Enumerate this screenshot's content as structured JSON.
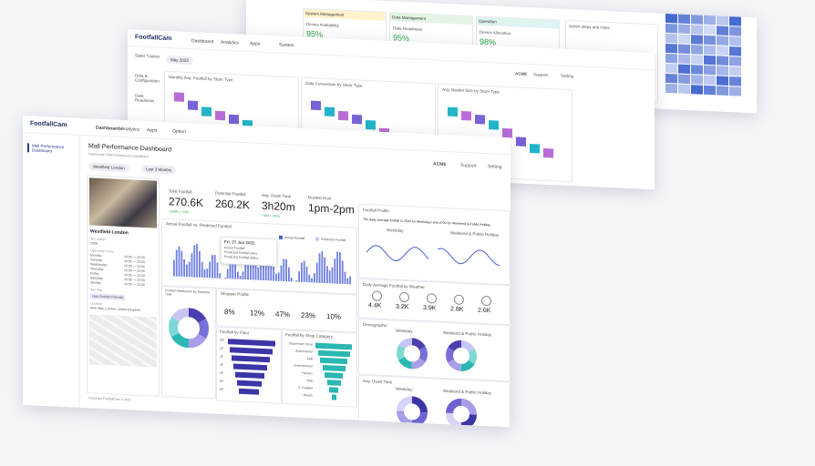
{
  "back_top": {
    "cards": [
      {
        "title": "System Management",
        "label": "Device Availability",
        "value": "95%"
      },
      {
        "title": "Data Management",
        "label": "Data Readiness",
        "value": "95%"
      },
      {
        "title": "Operation",
        "label": "Device Allocation",
        "value": "98%"
      }
    ],
    "hints": "Action steps and Hints"
  },
  "back_middle": {
    "logo": "FootfallCam",
    "nav": [
      "Dashboard",
      "Analytics",
      "Apps",
      "System"
    ],
    "account": "ACME",
    "support": "Support",
    "setting": "Setting",
    "sidebar": [
      "Sales Tracker",
      "Data & Configuration",
      "Data Readiness"
    ],
    "filter": "May 2022",
    "charts": [
      "Monthly Avg. Footfall by Store Type",
      "Data Conversion by Store Type",
      "Avg. Basket Size by Store Type"
    ]
  },
  "front": {
    "logo": "FootfallCam",
    "nav": [
      "Dashboards",
      "Analytics",
      "Apps",
      "Option"
    ],
    "sidebar_item": "Mall Performance Dashboard",
    "title": "Mall Performance Dashboard",
    "breadcrumb": "Dashboard / Mall Performance Dashboard",
    "filters": [
      "Westfield London",
      "Last 3 Months"
    ],
    "account": "ACME",
    "support": "Support",
    "setting": "Setting",
    "store": {
      "name": "Westfield London",
      "since_label": "Site Usage",
      "since": "2008",
      "hours_label": "Operating Hours",
      "days": [
        "Monday",
        "Tuesday",
        "Wednesday",
        "Thursday",
        "Friday",
        "Saturday",
        "Sunday"
      ],
      "hours": "10:00 — 22:00",
      "tag_label": "Site Tag",
      "tag": "High Footfall Potential",
      "location_label": "Location",
      "location": "Ariel Way, London, United Kingdom"
    },
    "kpis": [
      {
        "label": "Total Footfall",
        "value": "270.6K",
        "change": "+638K | +13%"
      },
      {
        "label": "Potential Footfall",
        "value": "260.2K"
      },
      {
        "label": "Avg. Dwell Time",
        "value": "3h20m",
        "change": "+38K | +22%"
      },
      {
        "label": "Busiest Hour",
        "value": "1pm-2pm"
      }
    ],
    "trend": {
      "title": "Actual Footfall vs. Predicted Footfall",
      "legend": [
        "Actual Footfall",
        "Predicted Footfall"
      ],
      "tooltip_date": "Fri, 27 Jan 2022",
      "tooltip_rows": [
        "Actual Footfall",
        "Predicted Footfall (Min)",
        "Predicted Footfall (Max)"
      ]
    },
    "distance": {
      "title": "Footfall Distribution by Distance Type"
    },
    "shopper": {
      "title": "Shopper Profile",
      "percents": [
        "8%",
        "12%",
        "47%",
        "23%",
        "10%"
      ]
    },
    "floor": {
      "title": "Footfall by Floor",
      "floors": [
        "GF",
        "1F",
        "2F",
        "3F",
        "4F",
        "5F",
        "6F"
      ]
    },
    "category": {
      "title": "Footfall by Shop Category",
      "items": [
        "Department Store",
        "Supermarket",
        "F&B",
        "Entertainment",
        "Fashion",
        "Kids",
        "IT Gadgets",
        "Beauty"
      ]
    },
    "profile": {
      "title": "Footfall Profile",
      "sentence": "The daily average footfall is 2500 for Weekdays and 4700 for Weekend & Public Holiday",
      "subs": [
        "Weekday",
        "Weekend & Public Holiday"
      ]
    },
    "weather": {
      "title": "Daily Average Footfall by Weather",
      "values": [
        "4.4K",
        "3.2K",
        "3.9K",
        "2.8K",
        "2.6K"
      ]
    },
    "demographic": {
      "title": "Demographic",
      "subs": [
        "Weekday",
        "Weekend & Public Holiday"
      ]
    },
    "dwell": {
      "title": "Avg. Dwell Time",
      "subs": [
        "Weekday",
        "Weekend & Public Holiday"
      ]
    },
    "footer": "Copyright FootfallCam © 2022"
  }
}
